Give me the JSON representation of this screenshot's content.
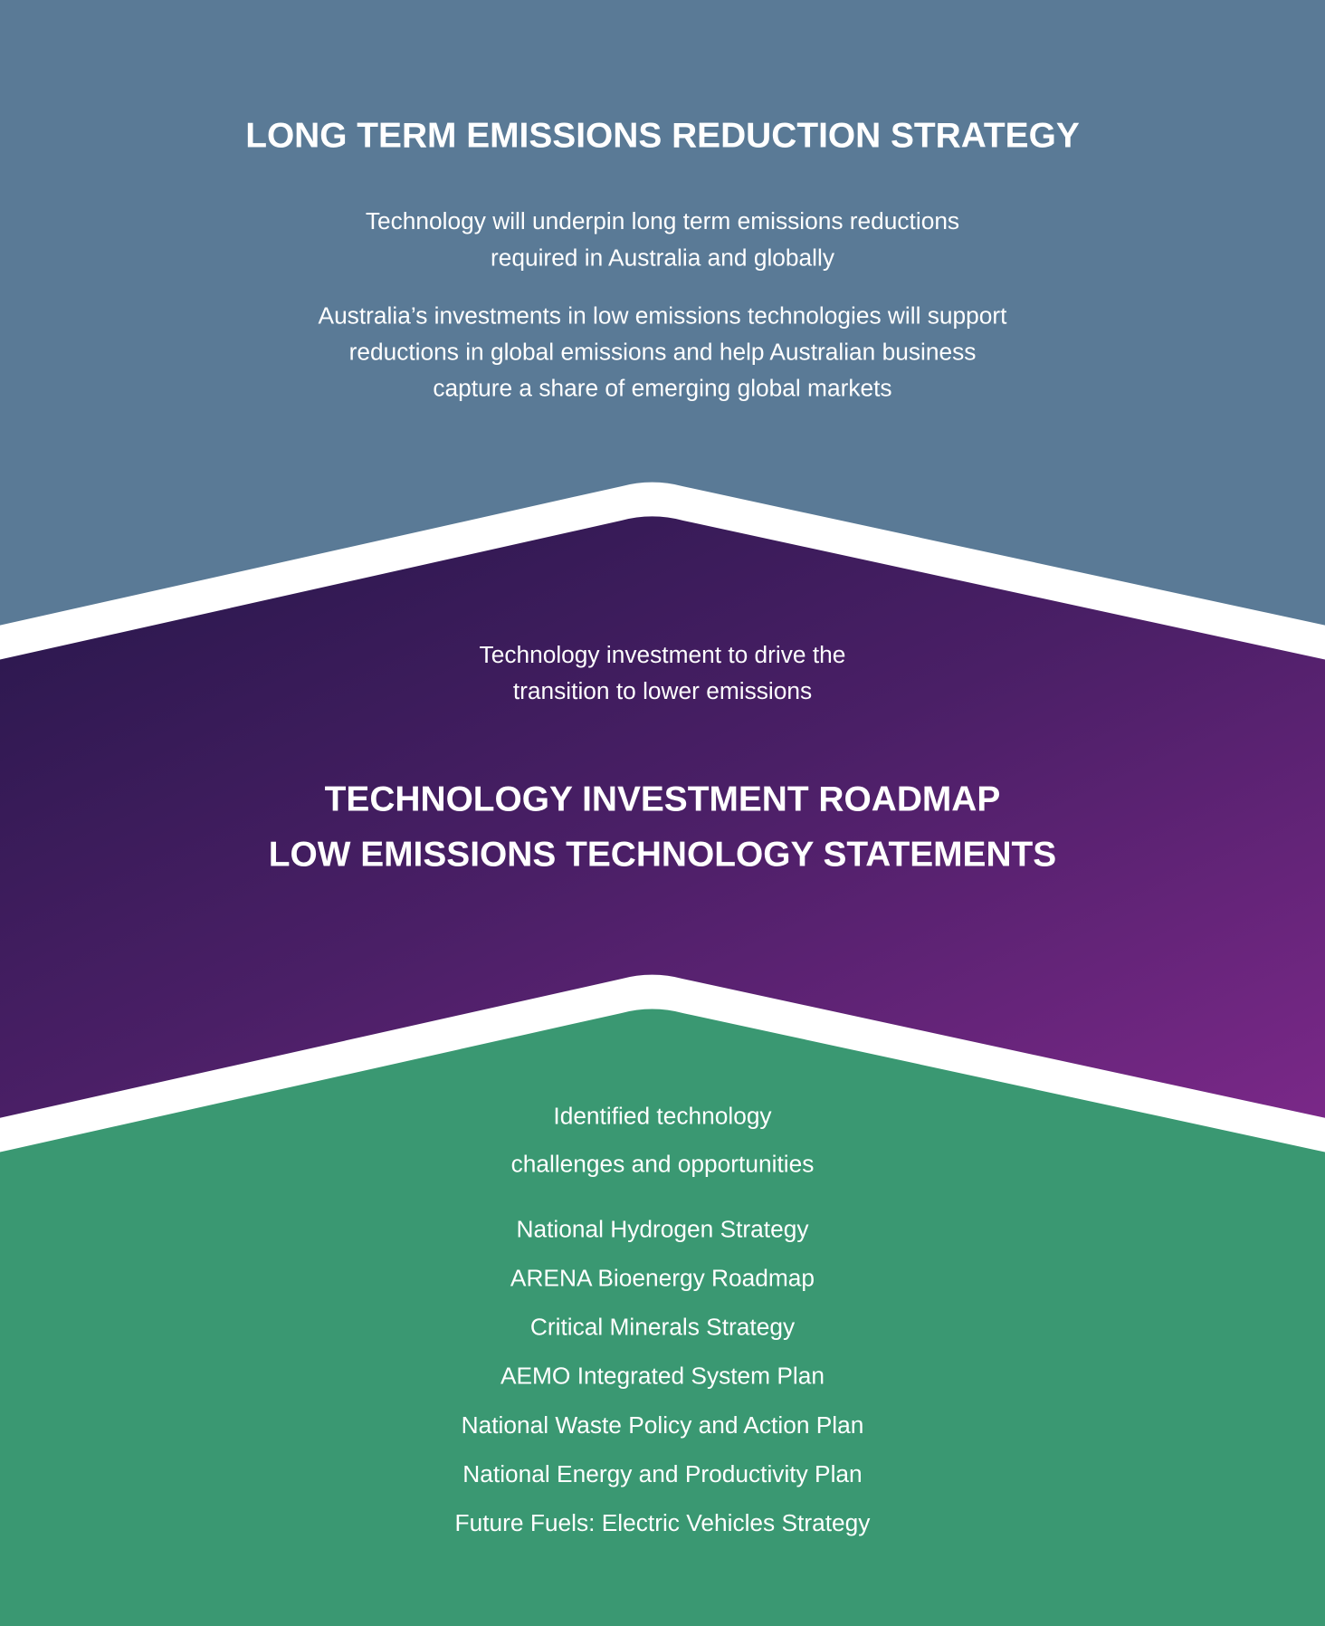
{
  "top": {
    "title": "LONG TERM EMISSIONS REDUCTION STRATEGY",
    "paragraphs": [
      [
        "Technology will underpin long term emissions reductions",
        "required in Australia and globally"
      ],
      [
        "Australia’s investments in low emissions technologies will support",
        "reductions in global emissions and help Australian business",
        "capture a share of emerging global markets"
      ]
    ]
  },
  "middle": {
    "intro": [
      "Technology investment to drive the",
      "transition to lower emissions"
    ],
    "titles": [
      "TECHNOLOGY INVESTMENT ROADMAP",
      "LOW EMISSIONS TECHNOLOGY STATEMENTS"
    ]
  },
  "bottom": {
    "intro": [
      "Identified technology",
      "challenges and opportunities"
    ],
    "items": [
      "National Hydrogen Strategy",
      "ARENA Bioenergy Roadmap",
      "Critical Minerals Strategy",
      "AEMO Integrated System Plan",
      "National Waste Policy and Action Plan",
      "National Energy and Productivity Plan",
      "Future Fuels: Electric Vehicles Strategy"
    ]
  }
}
